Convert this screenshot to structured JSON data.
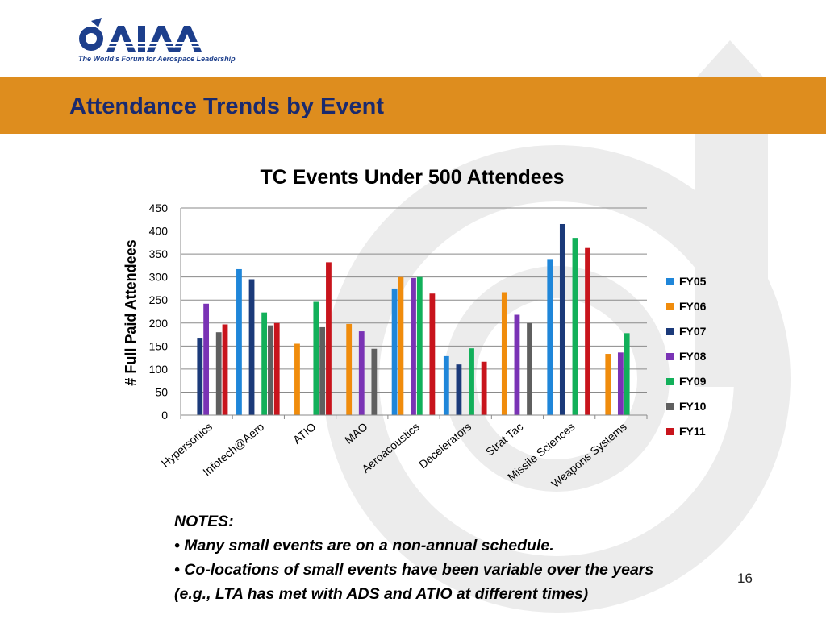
{
  "header": {
    "logo_text": "AIAA",
    "logo_tagline": "The World's Forum for Aerospace Leadership",
    "title": "Attendance Trends by Event"
  },
  "colors": {
    "title_band": "#de8d1e",
    "title_text": "#1a2a6e",
    "watermark": "#ececec"
  },
  "chart_data": {
    "type": "bar",
    "title": "TC Events Under 500 Attendees",
    "ylabel": "# Full Paid Attendees",
    "xlabel": "",
    "ylim": [
      0,
      450
    ],
    "yticks": [
      0,
      50,
      100,
      150,
      200,
      250,
      300,
      350,
      400,
      450
    ],
    "grid": true,
    "legend_position": "right",
    "categories": [
      "Hypersonics",
      "Infotech@Aero",
      "ATIO",
      "MAO",
      "Aeroacoustics",
      "Decelerators",
      "Strat Tac",
      "Missile Sciences",
      "Weapons Systems"
    ],
    "series": [
      {
        "name": "FY05",
        "color": "#1f86d9",
        "values": [
          null,
          317,
          null,
          null,
          275,
          128,
          null,
          339,
          null
        ]
      },
      {
        "name": "FY06",
        "color": "#f08c0c",
        "values": [
          null,
          null,
          155,
          198,
          300,
          null,
          267,
          null,
          133
        ]
      },
      {
        "name": "FY07",
        "color": "#1b3a7a",
        "values": [
          168,
          295,
          null,
          null,
          null,
          110,
          null,
          415,
          null
        ]
      },
      {
        "name": "FY08",
        "color": "#7a33b5",
        "values": [
          242,
          null,
          null,
          182,
          298,
          null,
          218,
          null,
          136
        ]
      },
      {
        "name": "FY09",
        "color": "#12b05a",
        "values": [
          null,
          223,
          246,
          null,
          300,
          145,
          null,
          385,
          178
        ]
      },
      {
        "name": "FY10",
        "color": "#5f5f5f",
        "values": [
          180,
          195,
          191,
          144,
          null,
          null,
          200,
          null,
          null
        ]
      },
      {
        "name": "FY11",
        "color": "#c8141c",
        "values": [
          197,
          200,
          332,
          null,
          264,
          116,
          null,
          363,
          null
        ]
      }
    ]
  },
  "notes": {
    "heading": "NOTES:",
    "items": [
      "• Many small events are on a non-annual schedule.",
      "• Co-locations of small events have been variable over the years",
      "(e.g., LTA has met with ADS and ATIO at different times)"
    ]
  },
  "page_number": "16"
}
